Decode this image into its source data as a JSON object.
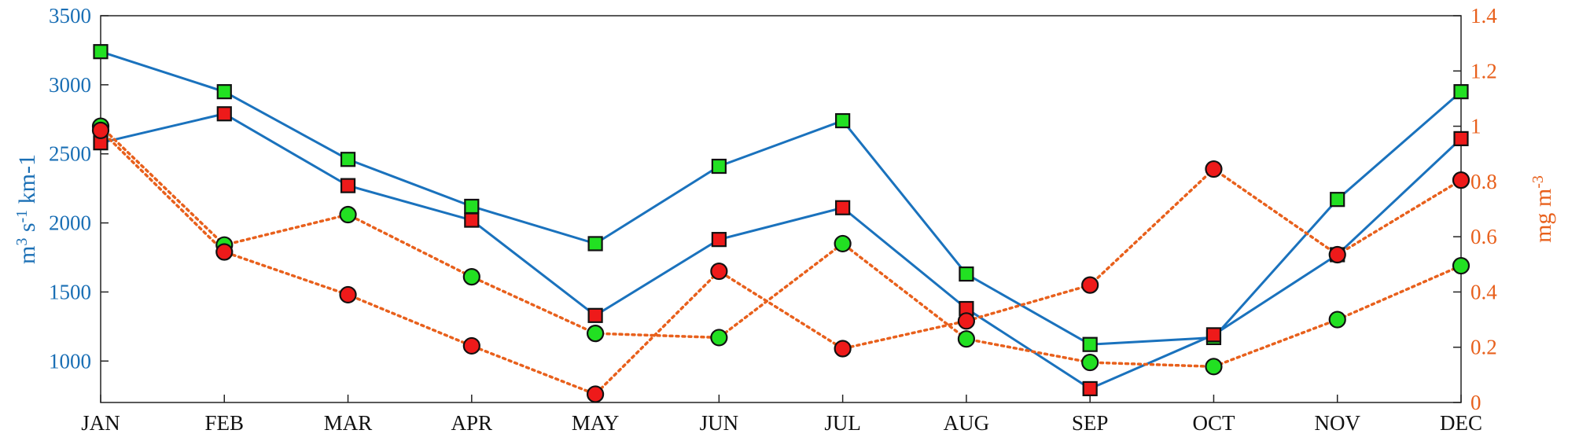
{
  "chart_data": {
    "type": "line",
    "categories": [
      "JAN",
      "FEB",
      "MAR",
      "APR",
      "MAY",
      "JUN",
      "JUL",
      "AUG",
      "SEP",
      "OCT",
      "NOV",
      "DEC"
    ],
    "ylabel_left": {
      "base": "m",
      "sup1": "3",
      "mid": " s",
      "sup2": "-1",
      "tail": " km-1"
    },
    "ylabel_right": {
      "base": "mg m",
      "sup": "-3"
    },
    "ylim_left": [
      700,
      3500
    ],
    "ylim_right": [
      0,
      1.4
    ],
    "yticks_left": [
      1000,
      1500,
      2000,
      2500,
      3000,
      3500
    ],
    "yticks_right": [
      0,
      0.2,
      0.4,
      0.6,
      0.8,
      1,
      1.2,
      1.4
    ],
    "colors": {
      "left_axis": "#1a6fb5",
      "right_axis": "#e8601c",
      "line_solid": "#1a72bd",
      "line_dotted": "#e8601c",
      "green_marker": "#22e022",
      "red_marker": "#ee1a1a"
    },
    "series": [
      {
        "axis": "left",
        "style": "solid",
        "marker": "square",
        "fill": "green",
        "values": [
          3240,
          2950,
          2460,
          2120,
          1850,
          2410,
          2740,
          1630,
          1120,
          1170,
          2170,
          2950
        ]
      },
      {
        "axis": "left",
        "style": "solid",
        "marker": "square",
        "fill": "red",
        "values": [
          2580,
          2790,
          2270,
          2020,
          1330,
          1880,
          2110,
          1380,
          800,
          1190,
          1770,
          2610
        ]
      },
      {
        "axis": "right",
        "style": "dotted",
        "marker": "circle",
        "fill": "green",
        "values": [
          1.0,
          0.57,
          0.68,
          0.455,
          0.25,
          0.235,
          0.575,
          0.23,
          0.145,
          0.13,
          0.3,
          0.495
        ]
      },
      {
        "axis": "right",
        "style": "dotted",
        "marker": "circle",
        "fill": "red",
        "values": [
          0.985,
          0.545,
          0.39,
          0.205,
          0.03,
          0.475,
          0.195,
          0.295,
          0.425,
          0.845,
          0.535,
          0.805
        ]
      }
    ]
  }
}
